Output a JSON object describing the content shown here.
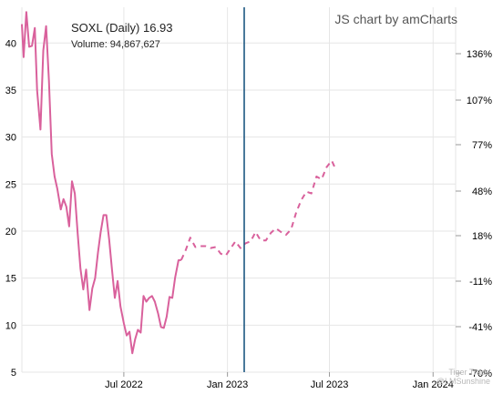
{
  "info": {
    "symbol_line": "SOXL (Daily) 16.93",
    "volume_line": "Volume: 94,867,627"
  },
  "credit": "JS chart by amCharts",
  "watermark": {
    "line1": "Tiger Trade",
    "line2": "@LMSunshine"
  },
  "colors": {
    "series": "#d9619c",
    "cursor": "#0f4d7a",
    "grid": "#e6e6e6",
    "axis": "#999999"
  },
  "chart_data": {
    "type": "line",
    "left_axis": {
      "ticks": [
        {
          "v": 5,
          "label": "5"
        },
        {
          "v": 10,
          "label": "10"
        },
        {
          "v": 15,
          "label": "15"
        },
        {
          "v": 20,
          "label": "20"
        },
        {
          "v": 25,
          "label": "25"
        },
        {
          "v": 30,
          "label": "30"
        },
        {
          "v": 35,
          "label": "35"
        },
        {
          "v": 40,
          "label": "40"
        }
      ],
      "range": [
        5,
        43
      ]
    },
    "right_axis": {
      "ticks": [
        {
          "v": 136,
          "label": "136%"
        },
        {
          "v": 107,
          "label": "107%"
        },
        {
          "v": 77,
          "label": "77%"
        },
        {
          "v": 48,
          "label": "48%"
        },
        {
          "v": 18,
          "label": "18%"
        },
        {
          "v": -11,
          "label": "-11%"
        },
        {
          "v": -41,
          "label": "-41%"
        },
        {
          "v": -70,
          "label": "-70%"
        }
      ]
    },
    "x_axis": {
      "ticks": [
        {
          "date": "2022-07-01",
          "label": "Jul 2022"
        },
        {
          "date": "2023-01-01",
          "label": "Jan 2023"
        },
        {
          "date": "2023-07-01",
          "label": "Jul 2023"
        },
        {
          "date": "2024-01-01",
          "label": "Jan 2024"
        }
      ],
      "range": [
        "2022-01-01",
        "2024-02-10"
      ]
    },
    "cursor_date": "2023-01-06",
    "series": [
      {
        "style": "solid",
        "points": [
          [
            "2022-01-01",
            42.0
          ],
          [
            "2022-01-04",
            38.5
          ],
          [
            "2022-01-09",
            43.3
          ],
          [
            "2022-01-14",
            39.6
          ],
          [
            "2022-01-19",
            39.7
          ],
          [
            "2022-01-24",
            41.6
          ],
          [
            "2022-01-28",
            35.0
          ],
          [
            "2022-02-03",
            30.8
          ],
          [
            "2022-02-08",
            39.2
          ],
          [
            "2022-02-13",
            41.8
          ],
          [
            "2022-02-18",
            36.0
          ],
          [
            "2022-02-23",
            28.2
          ],
          [
            "2022-02-28",
            25.8
          ],
          [
            "2022-03-05",
            24.5
          ],
          [
            "2022-03-11",
            22.3
          ],
          [
            "2022-03-16",
            23.4
          ],
          [
            "2022-03-21",
            22.6
          ],
          [
            "2022-03-26",
            20.5
          ],
          [
            "2022-03-31",
            25.3
          ],
          [
            "2022-04-05",
            24.0
          ],
          [
            "2022-04-10",
            19.8
          ],
          [
            "2022-04-15",
            16.0
          ],
          [
            "2022-04-20",
            13.8
          ],
          [
            "2022-04-25",
            15.9
          ],
          [
            "2022-05-01",
            11.6
          ],
          [
            "2022-05-06",
            13.9
          ],
          [
            "2022-05-11",
            15.0
          ],
          [
            "2022-05-16",
            17.7
          ],
          [
            "2022-05-21",
            19.9
          ],
          [
            "2022-05-26",
            21.7
          ],
          [
            "2022-05-31",
            21.7
          ],
          [
            "2022-06-05",
            19.1
          ],
          [
            "2022-06-10",
            15.9
          ],
          [
            "2022-06-15",
            12.9
          ],
          [
            "2022-06-20",
            14.7
          ],
          [
            "2022-06-25",
            12.0
          ],
          [
            "2022-07-01",
            10.2
          ],
          [
            "2022-07-06",
            8.9
          ],
          [
            "2022-07-11",
            9.3
          ],
          [
            "2022-07-16",
            7.0
          ],
          [
            "2022-07-21",
            8.5
          ],
          [
            "2022-07-26",
            9.5
          ],
          [
            "2022-07-31",
            9.2
          ],
          [
            "2022-08-05",
            13.1
          ],
          [
            "2022-08-10",
            12.5
          ],
          [
            "2022-08-15",
            12.9
          ],
          [
            "2022-08-20",
            13.1
          ],
          [
            "2022-08-25",
            12.5
          ],
          [
            "2022-08-31",
            11.2
          ],
          [
            "2022-09-05",
            9.8
          ],
          [
            "2022-09-10",
            9.7
          ],
          [
            "2022-09-15",
            10.9
          ],
          [
            "2022-09-20",
            13.0
          ],
          [
            "2022-09-25",
            12.9
          ],
          [
            "2022-09-30",
            15.0
          ],
          [
            "2022-10-06",
            16.9
          ],
          [
            "2022-10-11",
            16.93
          ]
        ]
      },
      {
        "style": "dashed",
        "points": [
          [
            "2022-10-11",
            16.93
          ],
          [
            "2022-10-19",
            18.0
          ],
          [
            "2022-10-27",
            19.3
          ],
          [
            "2022-11-05",
            18.3
          ],
          [
            "2022-11-14",
            18.4
          ],
          [
            "2022-11-23",
            18.4
          ],
          [
            "2022-12-02",
            18.2
          ],
          [
            "2022-12-11",
            18.3
          ],
          [
            "2022-12-20",
            17.6
          ],
          [
            "2022-12-29",
            17.4
          ],
          [
            "2023-01-06",
            18.1
          ],
          [
            "2023-01-15",
            18.9
          ],
          [
            "2023-01-24",
            18.2
          ],
          [
            "2023-02-02",
            18.7
          ],
          [
            "2023-02-11",
            18.9
          ],
          [
            "2023-02-20",
            19.9
          ],
          [
            "2023-03-01",
            19.0
          ],
          [
            "2023-03-10",
            19.0
          ],
          [
            "2023-03-19",
            19.8
          ],
          [
            "2023-03-28",
            20.3
          ],
          [
            "2023-04-06",
            19.9
          ],
          [
            "2023-04-15",
            19.6
          ],
          [
            "2023-04-24",
            20.2
          ],
          [
            "2023-05-03",
            22.0
          ],
          [
            "2023-05-12",
            23.3
          ],
          [
            "2023-05-21",
            24.2
          ],
          [
            "2023-05-30",
            24.0
          ],
          [
            "2023-06-08",
            25.8
          ],
          [
            "2023-06-17",
            25.5
          ],
          [
            "2023-06-26",
            26.8
          ],
          [
            "2023-07-05",
            27.5
          ],
          [
            "2023-07-12",
            26.6
          ]
        ]
      }
    ]
  }
}
